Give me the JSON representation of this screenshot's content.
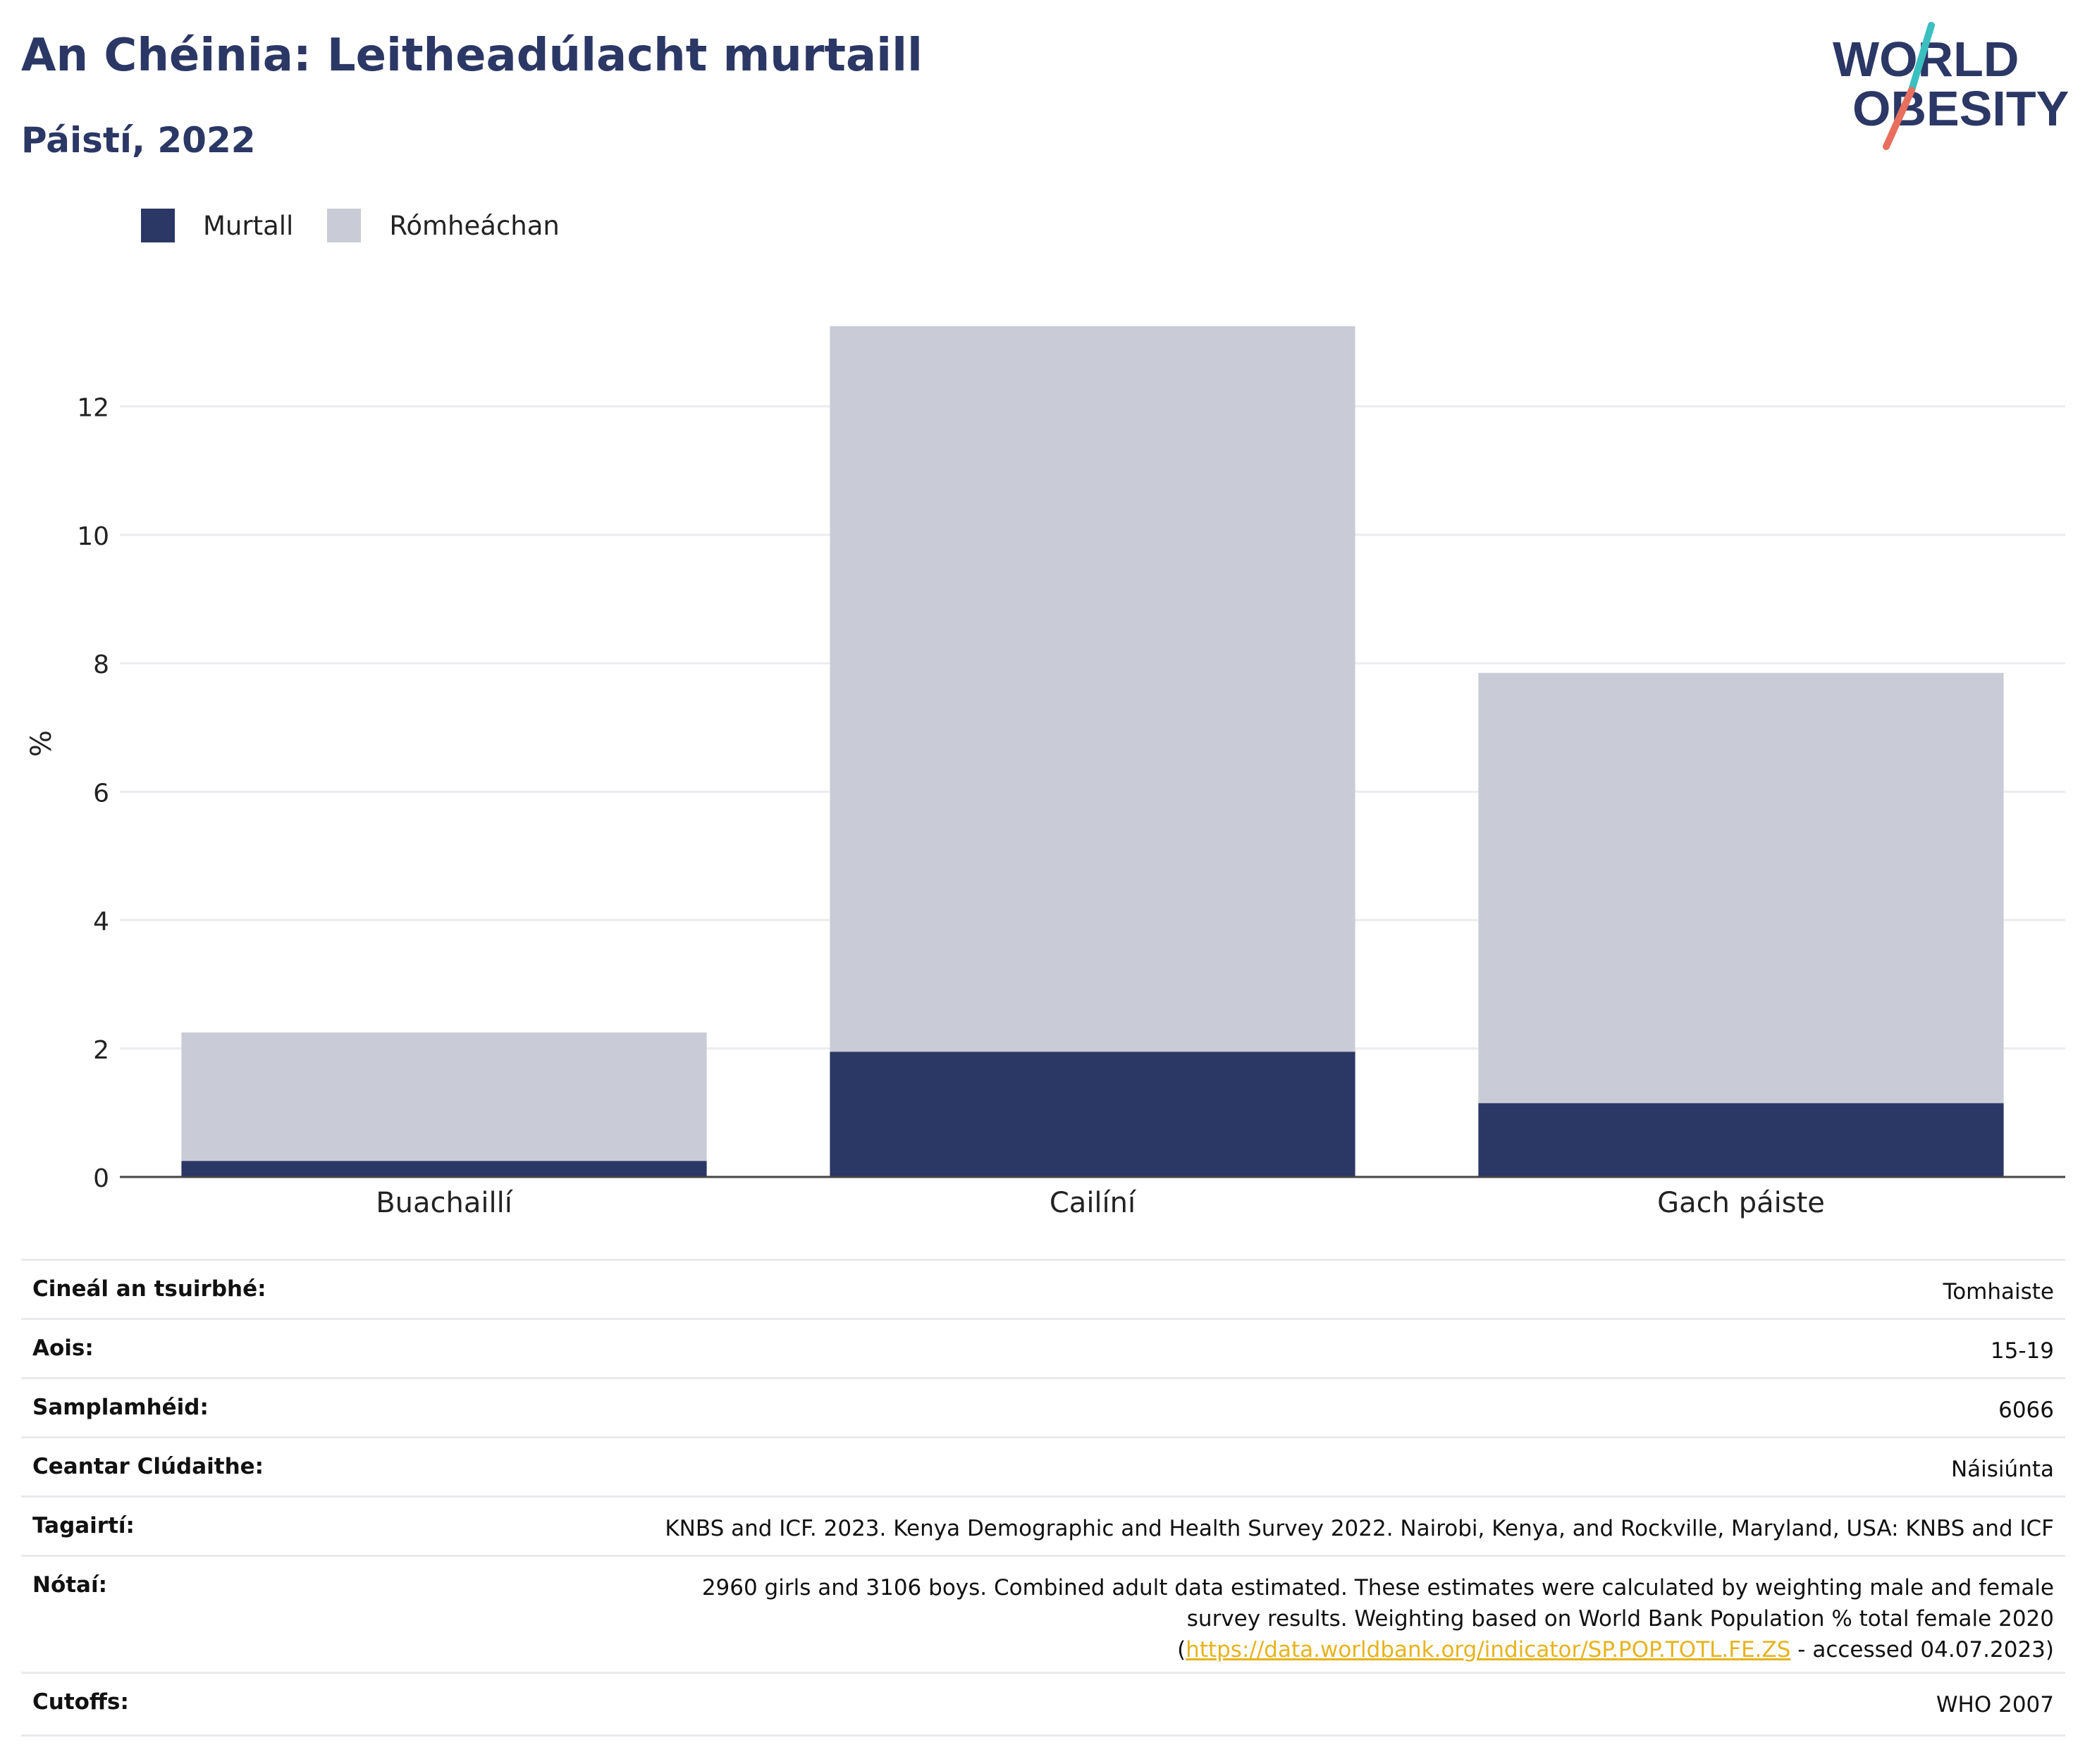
{
  "header": {
    "title": "An Chéinia: Leitheadúlacht murtaill",
    "subtitle": "Páistí, 2022"
  },
  "logo": {
    "line1": "WORLD",
    "line2": "OBESITY",
    "colors": {
      "text": "#2b3765",
      "slash_top": "#3bbfbf",
      "slash_bottom": "#e86f5e"
    }
  },
  "legend": [
    {
      "label": "Murtall",
      "color": "#2b3765"
    },
    {
      "label": "Rómheáchan",
      "color": "#c9cbd6"
    }
  ],
  "chart_data": {
    "type": "bar",
    "stacked": true,
    "categories": [
      "Buachaillí",
      "Cailíní",
      "Gach páiste"
    ],
    "series": [
      {
        "name": "Murtall",
        "color": "#2b3765",
        "values": [
          0.25,
          1.95,
          1.15
        ]
      },
      {
        "name": "Rómheáchan",
        "color": "#c9cbd6",
        "values": [
          2.0,
          11.3,
          6.7
        ]
      }
    ],
    "ylabel": "%",
    "xlabel": "",
    "yticks": [
      0,
      2,
      4,
      6,
      8,
      10,
      12
    ],
    "ylim": [
      0,
      13.5
    ],
    "grid": true
  },
  "meta": [
    {
      "key": "Cineál an tsuirbhé:",
      "value": "Tomhaiste"
    },
    {
      "key": "Aois:",
      "value": "15-19"
    },
    {
      "key": "Samplamhéid:",
      "value": "6066"
    },
    {
      "key": "Ceantar Clúdaithe:",
      "value": "Náisiúnta"
    },
    {
      "key": "Tagairtí:",
      "value": "KNBS and ICF. 2023. Kenya Demographic and Health Survey 2022. Nairobi, Kenya, and Rockville, Maryland, USA: KNBS and ICF"
    },
    {
      "key": "Nótaí:",
      "value_pre": "2960 girls and 3106 boys. Combined adult data estimated. These estimates were calculated by weighting male and female survey results. Weighting based on World Bank Population % total female 2020 (",
      "link": "https://data.worldbank.org/indicator/SP.POP.TOTL.FE.ZS",
      "value_post": " - accessed 04.07.2023)"
    },
    {
      "key": "Cutoffs:",
      "value": "WHO 2007"
    }
  ]
}
